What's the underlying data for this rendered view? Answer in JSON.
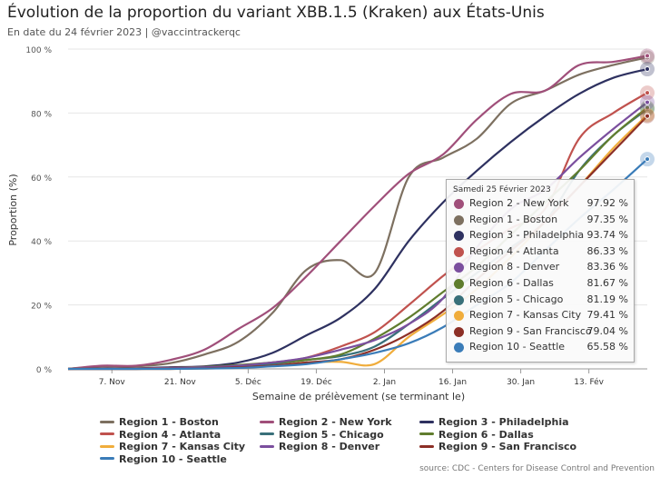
{
  "title": "Évolution de la proportion du variant XBB.1.5 (Kraken) aux États-Unis",
  "subtitle": "En date du 24 février 2023 | @vaccintrackerqc",
  "source": "source: CDC - Centers for Disease Control and Prevention",
  "tooltip": {
    "date": "Samedi 25 Février 2023",
    "rows": [
      {
        "name": "Region 2 - New York",
        "value": "97.92 %",
        "color": "#a04f7a"
      },
      {
        "name": "Region 1 - Boston",
        "value": "97.35 %",
        "color": "#7d7060"
      },
      {
        "name": "Region 3 - Philadelphia",
        "value": "93.74 %",
        "color": "#2e3160"
      },
      {
        "name": "Region 4 - Atlanta",
        "value": "86.33 %",
        "color": "#c0524e"
      },
      {
        "name": "Region 8 - Denver",
        "value": "83.36 %",
        "color": "#7b4f9e"
      },
      {
        "name": "Region 6 - Dallas",
        "value": "81.67 %",
        "color": "#607d2e"
      },
      {
        "name": "Region 5 - Chicago",
        "value": "81.19 %",
        "color": "#39707a"
      },
      {
        "name": "Region 7 - Kansas City",
        "value": "79.41 %",
        "color": "#f0ad3c"
      },
      {
        "name": "Region 9 - San Francisco",
        "value": "79.04 %",
        "color": "#8c2f26"
      },
      {
        "name": "Region 10 - Seattle",
        "value": "65.58 %",
        "color": "#3a7cb8"
      }
    ]
  },
  "chart_data": {
    "type": "line",
    "title": "Évolution de la proportion du variant XBB.1.5 (Kraken) aux États-Unis",
    "subtitle": "En date du 24 février 2023 | @vaccintrackerqc",
    "xlabel": "Semaine de prélèvement (se terminant le)",
    "ylabel": "Proportion (%)",
    "ylim": [
      0,
      100
    ],
    "yticks": [
      0,
      20,
      40,
      60,
      80,
      100
    ],
    "ytick_labels": [
      "0 %",
      "20 %",
      "40 %",
      "60 %",
      "80 %",
      "100 %"
    ],
    "xlim": [
      "2022-10-29",
      "2023-02-25"
    ],
    "xticks": [
      "2022-11-07",
      "2022-11-21",
      "2022-12-05",
      "2022-12-19",
      "2023-01-02",
      "2023-01-16",
      "2023-01-30",
      "2023-02-13"
    ],
    "xtick_labels": [
      "7. Nov",
      "21. Nov",
      "5. Déc",
      "19. Déc",
      "2. Jan",
      "16. Jan",
      "30. Jan",
      "13. Fév"
    ],
    "grid": true,
    "legend_position": "bottom",
    "x": [
      "2022-10-29",
      "2022-11-05",
      "2022-11-12",
      "2022-11-19",
      "2022-11-26",
      "2022-12-03",
      "2022-12-10",
      "2022-12-17",
      "2022-12-24",
      "2022-12-31",
      "2023-01-07",
      "2023-01-14",
      "2023-01-21",
      "2023-01-28",
      "2023-02-04",
      "2023-02-11",
      "2023-02-18",
      "2023-02-25"
    ],
    "series": [
      {
        "name": "Region 1 - Boston",
        "color": "#7d7060",
        "values": [
          0.0,
          0.8,
          0.8,
          1.8,
          4.5,
          8.5,
          17.5,
          31.0,
          34.0,
          30.0,
          60.0,
          66.0,
          72.0,
          83.0,
          87.0,
          92.0,
          95.0,
          97.35
        ]
      },
      {
        "name": "Region 2 - New York",
        "color": "#a04f7a",
        "values": [
          0.0,
          1.0,
          1.0,
          2.8,
          6.0,
          12.5,
          19.0,
          29.0,
          40.0,
          51.0,
          61.0,
          67.0,
          78.0,
          86.0,
          87.0,
          95.0,
          96.0,
          97.92
        ]
      },
      {
        "name": "Region 3 - Philadelphia",
        "color": "#2e3160",
        "values": [
          0.0,
          0.2,
          0.2,
          0.5,
          0.8,
          2.0,
          5.0,
          10.5,
          16.0,
          25.0,
          40.0,
          52.0,
          62.0,
          71.0,
          79.0,
          86.0,
          91.0,
          93.74
        ]
      },
      {
        "name": "Region 4 - Atlanta",
        "color": "#c0524e",
        "values": [
          0.0,
          0.1,
          0.1,
          0.3,
          0.6,
          1.0,
          2.0,
          3.5,
          7.0,
          11.5,
          20.0,
          29.0,
          37.0,
          44.0,
          50.0,
          72.0,
          80.0,
          86.33
        ]
      },
      {
        "name": "Region 5 - Chicago",
        "color": "#39707a",
        "values": [
          0.0,
          0.0,
          0.0,
          0.1,
          0.3,
          0.8,
          1.5,
          2.8,
          4.0,
          7.0,
          14.0,
          22.0,
          30.0,
          38.0,
          46.0,
          62.0,
          73.0,
          81.19
        ]
      },
      {
        "name": "Region 6 - Dallas",
        "color": "#607d2e",
        "values": [
          0.0,
          0.0,
          0.0,
          0.2,
          0.6,
          1.2,
          2.0,
          2.8,
          4.5,
          9.5,
          16.0,
          24.0,
          32.0,
          42.0,
          52.0,
          62.0,
          73.0,
          81.67
        ]
      },
      {
        "name": "Region 7 - Kansas City",
        "color": "#f0ad3c",
        "values": [
          0.0,
          0.0,
          0.0,
          0.0,
          0.1,
          0.4,
          1.0,
          2.0,
          2.2,
          1.5,
          10.0,
          17.0,
          25.0,
          35.0,
          46.0,
          57.0,
          69.0,
          79.41
        ]
      },
      {
        "name": "Region 8 - Denver",
        "color": "#7b4f9e",
        "values": [
          0.0,
          0.0,
          0.0,
          0.2,
          0.5,
          1.0,
          2.0,
          3.5,
          6.0,
          9.0,
          14.0,
          22.0,
          38.0,
          50.0,
          56.0,
          66.0,
          75.0,
          83.36
        ]
      },
      {
        "name": "Region 9 - San Francisco",
        "color": "#8c2f26",
        "values": [
          0.0,
          0.0,
          0.0,
          0.0,
          0.2,
          0.5,
          1.0,
          2.0,
          3.0,
          6.0,
          11.0,
          18.0,
          28.0,
          37.0,
          46.0,
          57.0,
          68.0,
          79.04
        ]
      },
      {
        "name": "Region 10 - Seattle",
        "color": "#3a7cb8",
        "values": [
          0.0,
          0.0,
          0.0,
          0.0,
          0.1,
          0.3,
          0.8,
          1.5,
          3.0,
          5.0,
          8.0,
          13.0,
          20.0,
          27.0,
          37.0,
          47.0,
          56.0,
          65.58
        ]
      }
    ]
  }
}
